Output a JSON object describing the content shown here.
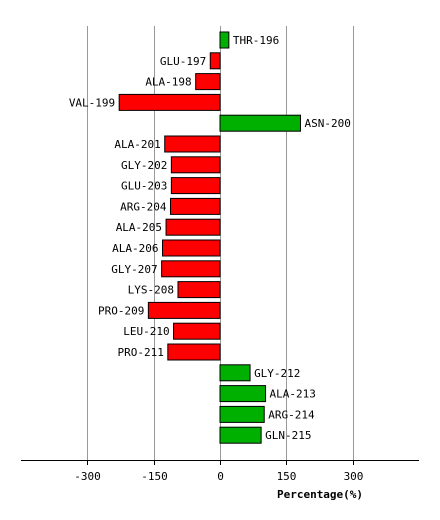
{
  "chart_data": {
    "type": "bar",
    "orientation": "horizontal",
    "categories": [
      "THR-196",
      "GLU-197",
      "ALA-198",
      "VAL-199",
      "ASN-200",
      "ALA-201",
      "GLY-202",
      "GLU-203",
      "ARG-204",
      "ALA-205",
      "ALA-206",
      "GLY-207",
      "LYS-208",
      "PRO-209",
      "LEU-210",
      "PRO-211",
      "GLY-212",
      "ALA-213",
      "ARG-214",
      "GLN-215"
    ],
    "values": [
      20,
      -22,
      -55,
      -228,
      182,
      -125,
      -110,
      -110,
      -112,
      -122,
      -130,
      -132,
      -95,
      -162,
      -105,
      -118,
      68,
      103,
      100,
      93
    ],
    "xlabel": "Percentage(%)",
    "xlim": [
      -450,
      450
    ],
    "xticks": [
      -300,
      -150,
      0,
      150,
      300
    ],
    "xtick_labels": [
      "-300",
      "-150",
      "0",
      "150",
      "300"
    ],
    "grid": true,
    "colors": {
      "positive": "#00b000",
      "negative": "#ff0000"
    }
  }
}
